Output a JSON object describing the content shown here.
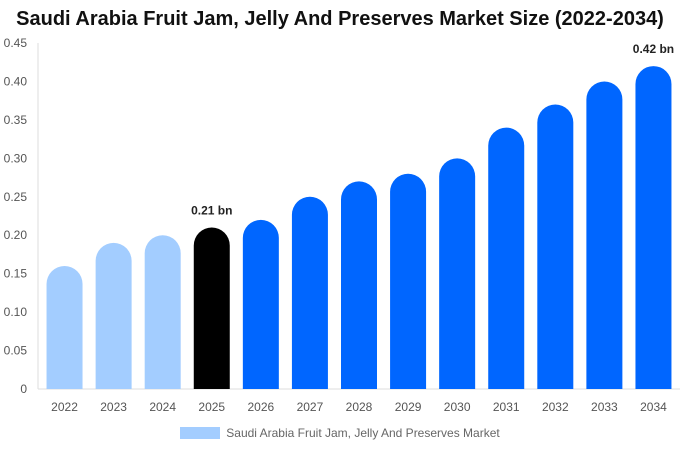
{
  "chart_data": {
    "type": "bar",
    "title": "Saudi Arabia Fruit Jam, Jelly And Preserves Market Size (2022-2034)",
    "categories": [
      "2022",
      "2023",
      "2024",
      "2025",
      "2026",
      "2027",
      "2028",
      "2029",
      "2030",
      "2031",
      "2032",
      "2033",
      "2034"
    ],
    "series": [
      {
        "name": "Saudi Arabia Fruit Jam, Jelly And Preserves Market",
        "values": [
          0.16,
          0.19,
          0.2,
          0.21,
          0.22,
          0.25,
          0.27,
          0.28,
          0.3,
          0.34,
          0.37,
          0.4,
          0.42
        ]
      }
    ],
    "ylim": [
      0,
      0.45
    ],
    "yticks": [
      "0",
      "0.05",
      "0.10",
      "0.15",
      "0.20",
      "0.25",
      "0.30",
      "0.35",
      "0.40",
      "0.45"
    ],
    "data_labels": {
      "2025": "0.21 bn",
      "2034": "0.42 bn"
    },
    "colors": {
      "historical": "#a3cdff",
      "current": "#000000",
      "forecast": "#0066ff"
    },
    "bar_color_groups": [
      "historical",
      "historical",
      "historical",
      "current",
      "forecast",
      "forecast",
      "forecast",
      "forecast",
      "forecast",
      "forecast",
      "forecast",
      "forecast",
      "forecast"
    ],
    "legend_position": "bottom",
    "grid": false
  }
}
